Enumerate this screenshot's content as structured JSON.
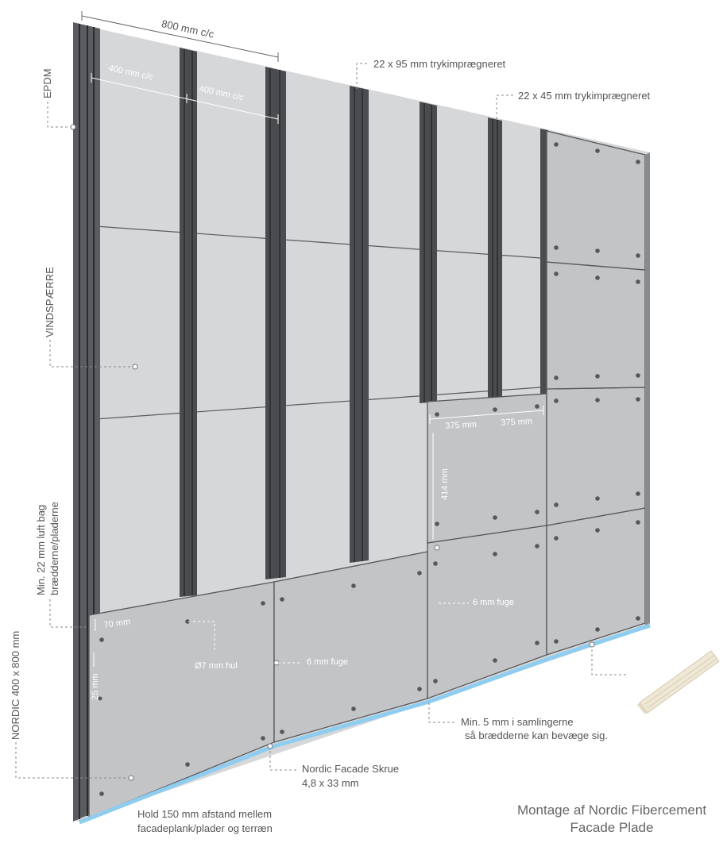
{
  "labels": {
    "c800": "800 mm c/c",
    "c400a": "400 mm c/c",
    "c400b": "400 mm c/c",
    "lath95": "22 x 95 mm trykimprægneret",
    "lath45": "22 x 45 mm trykimprægneret",
    "epdm": "EPDM",
    "vindspaerre": "VINDSPÆRRE",
    "air_line1": "Min. 22 mm luft bag",
    "air_line2": "brædderne/pladerne",
    "nordic_size": "NORDIC 400 x 800 mm",
    "w375a": "375 mm",
    "w375b": "375 mm",
    "h414": "414 mm",
    "fuge6_right": "6 mm fuge",
    "d70": "70 mm",
    "d25": "25 mm",
    "hole": "Ø7 mm hul",
    "fuge6_left": "6 mm fuge",
    "min5_line1": "Min. 5 mm i samlingerne",
    "min5_line2": "så brædderne kan bevæge sig.",
    "screw_line1": "Nordic Facade Skrue",
    "screw_line2": "4,8 x 33 mm",
    "ground_line1": "Hold 150 mm afstand mellem",
    "ground_line2": "facadeplank/plader og terræn"
  },
  "title": {
    "line1": "Montage af Nordic Fibercement",
    "line2": "Facade Plade"
  },
  "colors": {
    "membrane": "#d6d7d9",
    "panel": "#c3c4c6",
    "batten": "#4a4c50",
    "edge_blue": "#8ecdf0",
    "leader": "#8a8a8a"
  },
  "icons": [
    "corner-profile-icon"
  ]
}
